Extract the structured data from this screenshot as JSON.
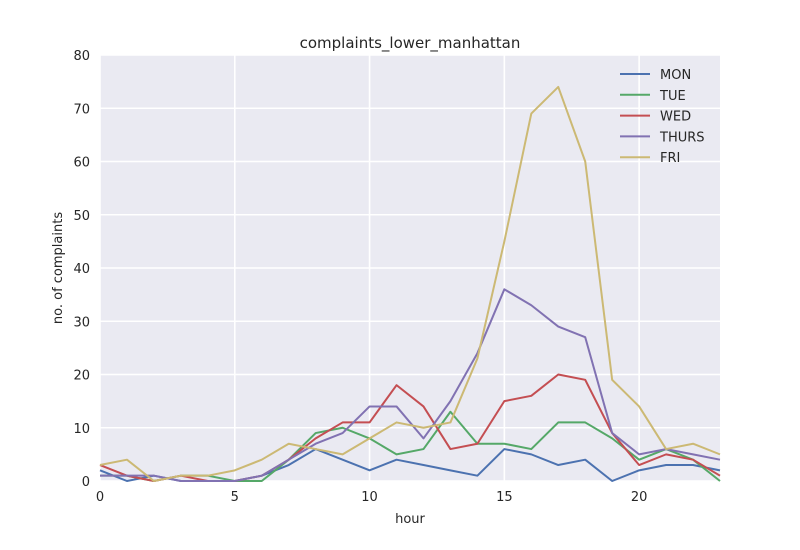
{
  "chart_data": {
    "type": "line",
    "title": "complaints_lower_manhattan",
    "xlabel": "hour",
    "ylabel": "no. of complaints",
    "xlim": [
      0,
      23
    ],
    "ylim": [
      0,
      80
    ],
    "xticks": [
      0,
      5,
      10,
      15,
      20
    ],
    "yticks": [
      0,
      10,
      20,
      30,
      40,
      50,
      60,
      70,
      80
    ],
    "grid": true,
    "legend_position": "top-right",
    "x": [
      0,
      1,
      2,
      3,
      4,
      5,
      6,
      7,
      8,
      9,
      10,
      11,
      12,
      13,
      14,
      15,
      16,
      17,
      18,
      19,
      20,
      21,
      22,
      23
    ],
    "series": [
      {
        "name": "MON",
        "color": "#4c72b0",
        "values": [
          2,
          0,
          1,
          0,
          0,
          0,
          1,
          3,
          6,
          4,
          2,
          4,
          3,
          2,
          1,
          6,
          5,
          3,
          4,
          0,
          2,
          3,
          3,
          2
        ]
      },
      {
        "name": "TUE",
        "color": "#55a868",
        "values": [
          1,
          1,
          0,
          1,
          1,
          0,
          0,
          4,
          9,
          10,
          8,
          5,
          6,
          13,
          7,
          7,
          6,
          11,
          11,
          8,
          4,
          6,
          4,
          0
        ]
      },
      {
        "name": "WED",
        "color": "#c44e52",
        "values": [
          3,
          1,
          0,
          1,
          0,
          0,
          1,
          4,
          8,
          11,
          11,
          18,
          14,
          6,
          7,
          15,
          16,
          20,
          19,
          9,
          3,
          5,
          4,
          1
        ]
      },
      {
        "name": "THURS",
        "color": "#8172b2",
        "values": [
          1,
          1,
          1,
          0,
          0,
          0,
          1,
          4,
          7,
          9,
          14,
          14,
          8,
          15,
          24,
          36,
          33,
          29,
          27,
          9,
          5,
          6,
          5,
          4
        ]
      },
      {
        "name": "FRI",
        "color": "#ccb974",
        "values": [
          3,
          4,
          0,
          1,
          1,
          2,
          4,
          7,
          6,
          5,
          8,
          11,
          10,
          11,
          23,
          45,
          69,
          74,
          60,
          19,
          14,
          6,
          7,
          5
        ]
      }
    ]
  }
}
